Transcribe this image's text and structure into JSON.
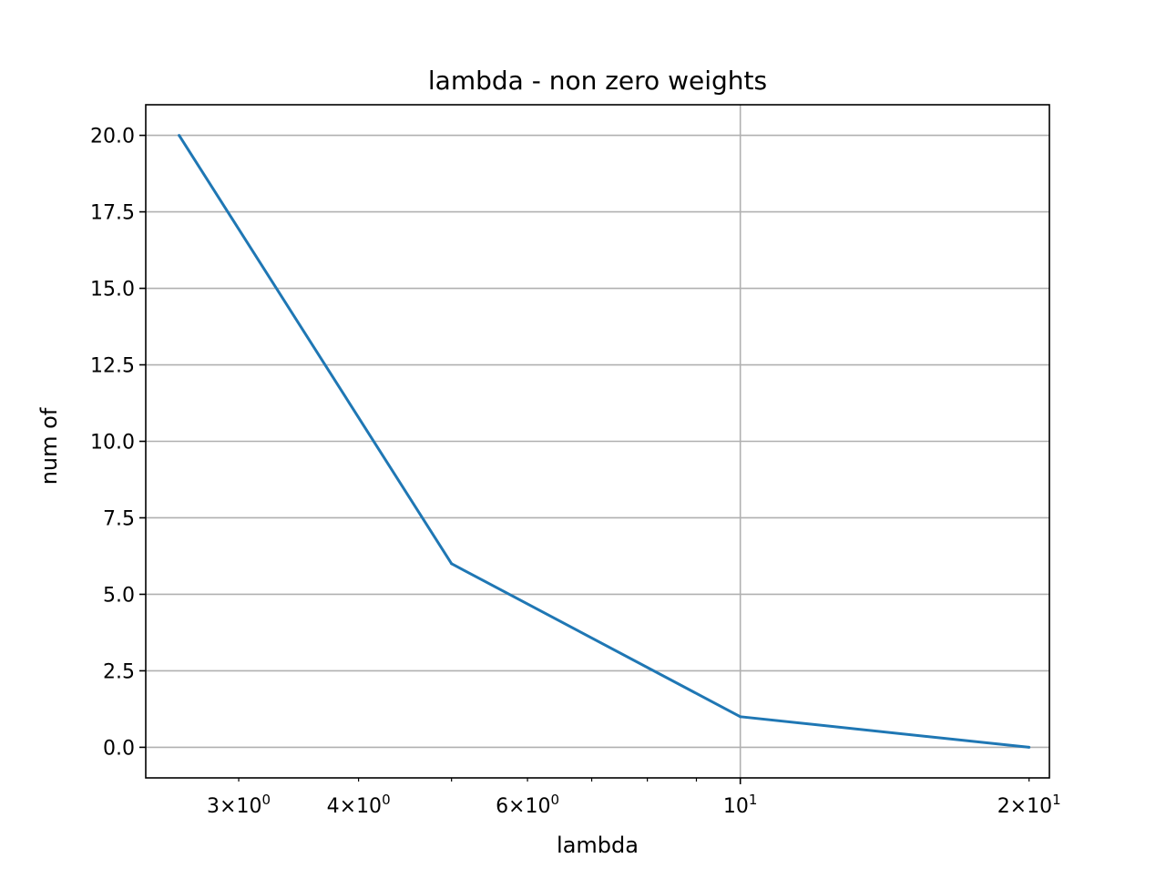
{
  "chart_data": {
    "type": "line",
    "title": "lambda - non zero weights",
    "xlabel": "lambda",
    "ylabel": "num of",
    "xscale": "log",
    "xlim": [
      2.4,
      21.0
    ],
    "ylim": [
      -1.0,
      21.0
    ],
    "grid": true,
    "line_color": "#1f77b4",
    "series": [
      {
        "x": [
          2.6,
          5.0,
          10.0,
          20.0
        ],
        "values": [
          20,
          6,
          1,
          0
        ]
      }
    ],
    "yticks": [
      {
        "value": 0.0,
        "label": "0.0"
      },
      {
        "value": 2.5,
        "label": "2.5"
      },
      {
        "value": 5.0,
        "label": "5.0"
      },
      {
        "value": 7.5,
        "label": "7.5"
      },
      {
        "value": 10.0,
        "label": "10.0"
      },
      {
        "value": 12.5,
        "label": "12.5"
      },
      {
        "value": 15.0,
        "label": "15.0"
      },
      {
        "value": 17.5,
        "label": "17.5"
      },
      {
        "value": 20.0,
        "label": "20.0"
      }
    ],
    "xticks_major": [
      {
        "value": 10,
        "base": "10",
        "exp": "1"
      }
    ],
    "xticks_minor": [
      {
        "value": 3,
        "mant": "3",
        "base": "10",
        "exp": "0"
      },
      {
        "value": 4,
        "mant": "4",
        "base": "10",
        "exp": "0"
      },
      {
        "value": 5
      },
      {
        "value": 6,
        "mant": "6",
        "base": "10",
        "exp": "0"
      },
      {
        "value": 7
      },
      {
        "value": 8
      },
      {
        "value": 9
      },
      {
        "value": 20,
        "mant": "2",
        "base": "10",
        "exp": "1"
      }
    ]
  }
}
